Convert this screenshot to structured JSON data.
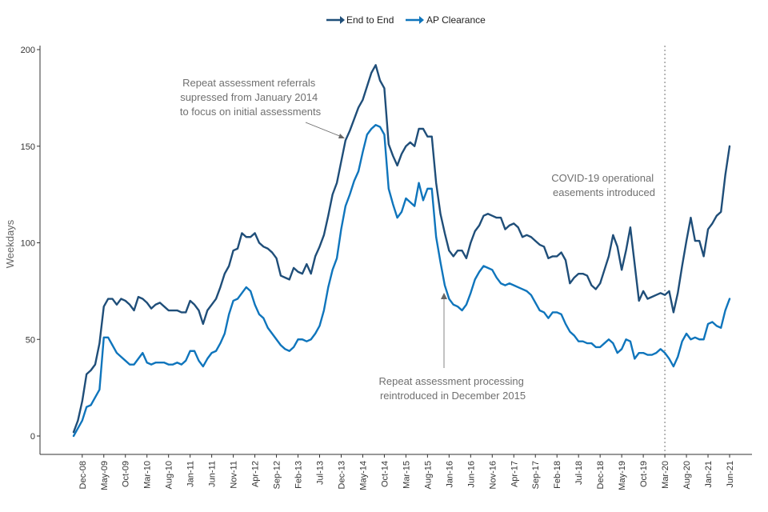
{
  "chart_data": {
    "type": "line",
    "title": "",
    "xlabel": "",
    "ylabel": "Weekdays",
    "ylim": [
      0,
      200
    ],
    "yticks": [
      0,
      50,
      100,
      150,
      200
    ],
    "grid": false,
    "legend_position": "top-center",
    "x_tick_labels": [
      "Dec-08",
      "May-09",
      "Oct-09",
      "Mar-10",
      "Aug-10",
      "Jan-11",
      "Jun-11",
      "Nov-11",
      "Apr-12",
      "Sep-12",
      "Feb-13",
      "Jul-13",
      "Dec-13",
      "May-14",
      "Oct-14",
      "Mar-15",
      "Aug-15",
      "Jan-16",
      "Jun-16",
      "Nov-16",
      "Apr-17",
      "Sep-17",
      "Feb-18",
      "Jul-18",
      "Dec-18",
      "May-19",
      "Oct-19",
      "Mar-20",
      "Aug-20",
      "Jan-21",
      "Jun-21"
    ],
    "x_start": "Oct-08",
    "x_end": "Jun-21",
    "series": [
      {
        "name": "End to End",
        "color": "#1f4e79",
        "values": [
          2,
          8,
          18,
          32,
          34,
          37,
          48,
          67,
          71,
          71,
          68,
          71,
          70,
          68,
          65,
          72,
          71,
          69,
          66,
          68,
          69,
          67,
          65,
          65,
          65,
          64,
          64,
          70,
          68,
          65,
          58,
          65,
          68,
          71,
          77,
          84,
          88,
          96,
          97,
          105,
          103,
          103,
          105,
          100,
          98,
          97,
          95,
          92,
          83,
          82,
          81,
          87,
          85,
          84,
          89,
          84,
          93,
          98,
          104,
          114,
          125,
          131,
          142,
          153,
          158,
          164,
          170,
          174,
          181,
          188,
          192,
          184,
          180,
          151,
          145,
          140,
          146,
          150,
          152,
          150,
          159,
          159,
          155,
          155,
          131,
          115,
          105,
          96,
          93,
          96,
          96,
          92,
          100,
          106,
          109,
          114,
          115,
          114,
          113,
          113,
          107,
          109,
          110,
          108,
          103,
          104,
          103,
          101,
          99,
          98,
          92,
          93,
          93,
          95,
          91,
          79,
          82,
          84,
          84,
          83,
          78,
          76,
          79,
          86,
          93,
          104,
          98,
          86,
          96,
          108,
          89,
          70,
          75,
          71,
          72,
          73,
          74,
          73,
          75,
          64,
          74,
          88,
          101,
          113,
          101,
          101,
          93,
          107,
          110,
          114,
          116,
          135,
          150
        ]
      },
      {
        "name": "AP Clearance",
        "color": "#0f75bc",
        "values": [
          0,
          4,
          8,
          15,
          16,
          20,
          24,
          51,
          51,
          47,
          43,
          41,
          39,
          37,
          37,
          40,
          43,
          38,
          37,
          38,
          38,
          38,
          37,
          37,
          38,
          37,
          39,
          44,
          44,
          39,
          36,
          40,
          43,
          44,
          48,
          53,
          63,
          70,
          71,
          74,
          77,
          75,
          68,
          63,
          61,
          56,
          53,
          50,
          47,
          45,
          44,
          46,
          50,
          50,
          49,
          50,
          53,
          57,
          65,
          77,
          86,
          92,
          107,
          119,
          125,
          132,
          137,
          147,
          156,
          159,
          161,
          160,
          156,
          128,
          120,
          113,
          116,
          123,
          121,
          119,
          131,
          122,
          128,
          128,
          103,
          90,
          78,
          71,
          68,
          67,
          65,
          68,
          74,
          81,
          85,
          88,
          87,
          86,
          82,
          79,
          78,
          79,
          78,
          77,
          76,
          75,
          73,
          69,
          65,
          64,
          61,
          64,
          64,
          63,
          58,
          54,
          52,
          49,
          49,
          48,
          48,
          46,
          46,
          48,
          50,
          48,
          43,
          45,
          50,
          49,
          40,
          43,
          43,
          42,
          42,
          43,
          45,
          43,
          40,
          36,
          41,
          49,
          53,
          50,
          51,
          50,
          50,
          58,
          59,
          57,
          56,
          65,
          71
        ]
      }
    ],
    "vertical_markers": [
      {
        "at": "Mar-20",
        "style": "dotted",
        "color": "#888888"
      }
    ],
    "annotations": [
      {
        "lines": [
          "Repeat assessment referrals",
          "supressed from January 2014",
          "to focus on initial assessments"
        ],
        "points_to": "Dec-13"
      },
      {
        "lines": [
          "Repeat assessment processing",
          "reintroduced in December 2015"
        ],
        "points_to": "Dec-15"
      },
      {
        "lines": [
          "COVID-19 operational",
          "easements introduced"
        ],
        "points_to": "Mar-20"
      }
    ]
  }
}
